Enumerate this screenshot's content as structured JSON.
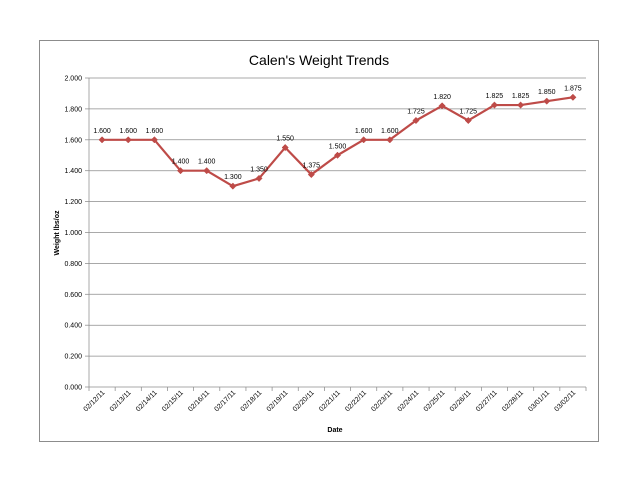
{
  "chart_data": {
    "type": "line",
    "title": "Calen's Weight Trends",
    "xlabel": "Date",
    "ylabel": "Weight lbs/oz",
    "ylim": [
      0,
      2
    ],
    "y_ticks": [
      "0.000",
      "0.200",
      "0.400",
      "0.600",
      "0.800",
      "1.000",
      "1.200",
      "1.400",
      "1.600",
      "1.800",
      "2.000"
    ],
    "categories": [
      "02/12/11",
      "02/13/11",
      "02/14/11",
      "02/15/11",
      "02/16/11",
      "02/17/11",
      "02/18/11",
      "02/19/11",
      "02/20/11",
      "02/21/11",
      "02/22/11",
      "02/23/11",
      "02/24/11",
      "02/25/11",
      "02/26/11",
      "02/27/11",
      "02/28/11",
      "03/01/11",
      "03/02/11"
    ],
    "values": [
      1.6,
      1.6,
      1.6,
      1.4,
      1.4,
      1.3,
      1.35,
      1.55,
      1.375,
      1.5,
      1.6,
      1.6,
      1.725,
      1.82,
      1.725,
      1.825,
      1.825,
      1.85,
      1.875
    ],
    "data_labels": [
      "1.600",
      "1.600",
      "1.600",
      "1.400",
      "1.400",
      "1.300",
      "1.350",
      "1.550",
      "1.375",
      "1.500",
      "1.600",
      "1.600",
      "1.725",
      "1.820",
      "1.725",
      "1.825",
      "1.825",
      "1.850",
      "1.875"
    ],
    "grid": true,
    "legend": "none",
    "series_color": "#be4b48"
  }
}
